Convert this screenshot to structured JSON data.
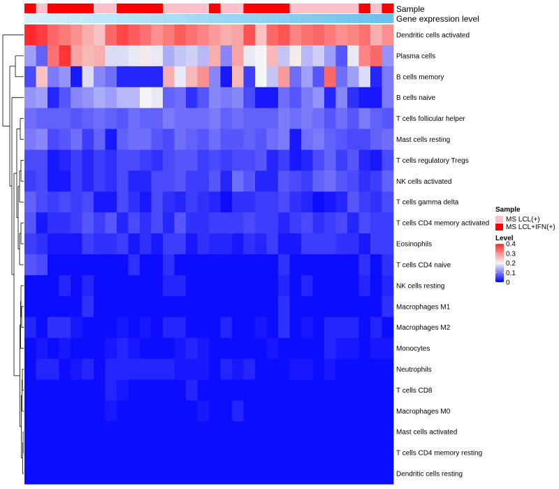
{
  "chart_data": {
    "type": "heatmap",
    "annotation_labels": {
      "sample": "Sample",
      "gene": "Gene expression level"
    },
    "legend": {
      "sample_title": "Sample",
      "sample_items": [
        {
          "label": "MS LCL(+)",
          "color": "#ffc0cb"
        },
        {
          "label": "MS LCL+IFN(+)",
          "color": "#ff0000"
        }
      ],
      "level_title": "Level",
      "level_ticks": [
        "0.4",
        "0.3",
        "0.2",
        "0.1",
        "0"
      ],
      "level_tick_values": [
        0.4,
        0.3,
        0.2,
        0.1,
        0
      ],
      "color_scale": [
        {
          "value": 0,
          "color": "#0000ff"
        },
        {
          "value": 0.2,
          "color": "#f5f5f5"
        },
        {
          "value": 0.4,
          "color": "#ff2a2a"
        }
      ],
      "placement": "right"
    },
    "sample_groups": [
      "red",
      "pink",
      "red",
      "red",
      "red",
      "red",
      "pink",
      "pink",
      "red",
      "red",
      "red",
      "red",
      "pink",
      "pink",
      "pink",
      "pink",
      "red",
      "pink",
      "pink",
      "red",
      "red",
      "red",
      "red",
      "pink",
      "pink",
      "pink",
      "pink",
      "pink",
      "pink",
      "red",
      "pink",
      "red"
    ],
    "gene_expression_colors": [
      "#d4f0fb",
      "#d1effb",
      "#cdedfa",
      "#caecfa",
      "#c6eafa",
      "#c3e9f9",
      "#bfe7f9",
      "#bce6f9",
      "#b8e4f8",
      "#b5e3f8",
      "#b1e1f8",
      "#aee0f7",
      "#aadef7",
      "#a7ddf7",
      "#a3dbf6",
      "#a0daf6",
      "#9cd8f6",
      "#99d7f5",
      "#95d5f5",
      "#92d4f5",
      "#8ed2f4",
      "#8bd1f4",
      "#87cff4",
      "#84cef3",
      "#80ccf3",
      "#7dcbf3",
      "#79c9f2",
      "#76c8f2",
      "#72c6f2",
      "#6fc5f1",
      "#6bc3f1",
      "#68c2f1"
    ],
    "rows": [
      {
        "name": "Dendritic cells activated",
        "values": [
          0.4,
          0.38,
          0.34,
          0.32,
          0.3,
          0.27,
          0.25,
          0.34,
          0.37,
          0.35,
          0.33,
          0.3,
          0.32,
          0.35,
          0.33,
          0.31,
          0.29,
          0.27,
          0.28,
          0.36,
          0.25,
          0.34,
          0.36,
          0.31,
          0.33,
          0.34,
          0.32,
          0.3,
          0.31,
          0.33,
          0.27,
          0.3
        ]
      },
      {
        "name": "Plasma cells",
        "values": [
          0.13,
          0.08,
          0.33,
          0.39,
          0.28,
          0.26,
          0.27,
          0.18,
          0.18,
          0.19,
          0.21,
          0.19,
          0.14,
          0.16,
          0.17,
          0.15,
          0.27,
          0.11,
          0.28,
          0.19,
          0.2,
          0.26,
          0.16,
          0.21,
          0.15,
          0.17,
          0.13,
          0.07,
          0.19,
          0.31,
          0.34,
          0.12
        ]
      },
      {
        "name": "B cells memory",
        "values": [
          0.06,
          0.25,
          0.1,
          0.12,
          0.02,
          0.18,
          0.11,
          0.09,
          0.03,
          0.03,
          0.03,
          0.03,
          0.27,
          0.19,
          0.26,
          0.3,
          0.11,
          0.02,
          0.26,
          0.05,
          0.2,
          0.16,
          0.29,
          0.09,
          0.13,
          0.07,
          0.34,
          0.09,
          0.13,
          0.18,
          0.03,
          0.1
        ]
      },
      {
        "name": "B cells naive",
        "values": [
          0.12,
          0.13,
          0.03,
          0.07,
          0.11,
          0.12,
          0.14,
          0.13,
          0.15,
          0.15,
          0.2,
          0.19,
          0.08,
          0.09,
          0.04,
          0.07,
          0.11,
          0.1,
          0.11,
          0.06,
          0.02,
          0.02,
          0.09,
          0.07,
          0.1,
          0.12,
          0.03,
          0.11,
          0.04,
          0.02,
          0.02,
          0.1
        ]
      },
      {
        "name": "T cells follicular helper",
        "values": [
          0.09,
          0.08,
          0.08,
          0.08,
          0.07,
          0.08,
          0.09,
          0.08,
          0.07,
          0.09,
          0.08,
          0.08,
          0.1,
          0.09,
          0.09,
          0.09,
          0.1,
          0.08,
          0.09,
          0.08,
          0.08,
          0.08,
          0.1,
          0.09,
          0.1,
          0.09,
          0.07,
          0.09,
          0.07,
          0.1,
          0.08,
          0.07
        ]
      },
      {
        "name": "Mast cells resting",
        "values": [
          0.1,
          0.11,
          0.06,
          0.07,
          0.09,
          0.05,
          0.08,
          0.02,
          0.08,
          0.09,
          0.09,
          0.07,
          0.06,
          0.09,
          0.08,
          0.07,
          0.09,
          0.07,
          0.07,
          0.08,
          0.07,
          0.09,
          0.1,
          0.02,
          0.09,
          0.1,
          0.08,
          0.07,
          0.06,
          0.06,
          0.08,
          0.09
        ]
      },
      {
        "name": "T cells regulatory  Tregs",
        "values": [
          0.06,
          0.06,
          0.02,
          0.03,
          0.05,
          0.03,
          0.05,
          0.04,
          0.06,
          0.06,
          0.05,
          0.04,
          0.06,
          0.07,
          0.07,
          0.05,
          0.06,
          0.05,
          0.06,
          0.06,
          0.07,
          0.03,
          0.05,
          0.02,
          0.03,
          0.06,
          0.08,
          0.05,
          0.07,
          0.03,
          0.02,
          0.06
        ]
      },
      {
        "name": "NK cells activated",
        "values": [
          0.05,
          0.06,
          0.02,
          0.02,
          0.05,
          0.03,
          0.05,
          0.04,
          0.06,
          0.03,
          0.03,
          0.06,
          0.06,
          0.07,
          0.05,
          0.05,
          0.07,
          0.03,
          0.09,
          0.07,
          0.03,
          0.03,
          0.07,
          0.06,
          0.05,
          0.08,
          0.09,
          0.07,
          0.06,
          0.04,
          0.05,
          0.08
        ]
      },
      {
        "name": "T cells gamma delta",
        "values": [
          0.08,
          0.06,
          0.05,
          0.06,
          0.05,
          0.06,
          0.02,
          0.02,
          0.06,
          0.04,
          0.02,
          0.06,
          0.04,
          0.03,
          0.05,
          0.04,
          0.03,
          0.01,
          0.04,
          0.04,
          0.05,
          0.05,
          0.06,
          0.04,
          0.03,
          0.01,
          0.02,
          0.03,
          0.07,
          0.05,
          0.04,
          0.06
        ]
      },
      {
        "name": "T cells CD4 memory activated",
        "values": [
          0.07,
          0.02,
          0.04,
          0.04,
          0.05,
          0.07,
          0.05,
          0.07,
          0.03,
          0.06,
          0.04,
          0.06,
          0.03,
          0.07,
          0.04,
          0.04,
          0.05,
          0.05,
          0.05,
          0.06,
          0.05,
          0.05,
          0.03,
          0.05,
          0.06,
          0.04,
          0.05,
          0.06,
          0.03,
          0.06,
          0.05,
          0.05
        ]
      },
      {
        "name": "Eosinophils",
        "values": [
          0.05,
          0.04,
          0.02,
          0.02,
          0.02,
          0.05,
          0.04,
          0.04,
          0.05,
          0.02,
          0.04,
          0.02,
          0.05,
          0.05,
          0.02,
          0.04,
          0.03,
          0.03,
          0.02,
          0.04,
          0.03,
          0.05,
          0.02,
          0.02,
          0.05,
          0.05,
          0.05,
          0.04,
          0.04,
          0.02,
          0.05,
          0.05
        ]
      },
      {
        "name": "T cells CD4 naive",
        "values": [
          0.07,
          0.06,
          0.01,
          0.01,
          0.01,
          0.01,
          0.01,
          0.01,
          0.01,
          0.04,
          0.01,
          0.01,
          0.04,
          0.01,
          0.01,
          0.01,
          0.01,
          0.01,
          0.01,
          0.01,
          0.01,
          0.01,
          0.04,
          0.01,
          0.01,
          0.01,
          0.01,
          0.01,
          0.01,
          0.04,
          0.01,
          0.04
        ]
      },
      {
        "name": "NK cells resting",
        "values": [
          0.01,
          0.01,
          0.01,
          0.03,
          0.01,
          0.03,
          0.01,
          0.01,
          0.01,
          0.01,
          0.01,
          0.01,
          0.03,
          0.03,
          0.01,
          0.01,
          0.01,
          0.01,
          0.01,
          0.01,
          0.01,
          0.01,
          0.03,
          0.01,
          0.03,
          0.01,
          0.01,
          0.01,
          0.01,
          0.03,
          0.01,
          0.03
        ]
      },
      {
        "name": "Macrophages M1",
        "values": [
          0.01,
          0.01,
          0.01,
          0.01,
          0.01,
          0.04,
          0.01,
          0.01,
          0.01,
          0.01,
          0.01,
          0.01,
          0.01,
          0.01,
          0.01,
          0.01,
          0.01,
          0.01,
          0.01,
          0.01,
          0.01,
          0.01,
          0.04,
          0.01,
          0.01,
          0.01,
          0.01,
          0.01,
          0.01,
          0.01,
          0.01,
          0.04
        ]
      },
      {
        "name": "Macrophages M2",
        "values": [
          0.03,
          0.01,
          0.04,
          0.04,
          0.02,
          0.01,
          0.01,
          0.01,
          0.02,
          0.01,
          0.02,
          0.01,
          0.03,
          0.03,
          0.01,
          0.01,
          0.01,
          0.03,
          0.01,
          0.01,
          0.02,
          0.01,
          0.04,
          0.01,
          0.02,
          0.01,
          0.03,
          0.03,
          0.03,
          0.01,
          0.03,
          0.01
        ]
      },
      {
        "name": "Monocytes",
        "values": [
          0.01,
          0.02,
          0.01,
          0.02,
          0.01,
          0.01,
          0.01,
          0.02,
          0.03,
          0.02,
          0.01,
          0.01,
          0.01,
          0.02,
          0.03,
          0.02,
          0.01,
          0.01,
          0.01,
          0.01,
          0.01,
          0.02,
          0.01,
          0.01,
          0.01,
          0.01,
          0.03,
          0.02,
          0.02,
          0.01,
          0.02,
          0.02
        ]
      },
      {
        "name": "Neutrophils",
        "values": [
          0.01,
          0.03,
          0.03,
          0.01,
          0.02,
          0.03,
          0.01,
          0.03,
          0.03,
          0.03,
          0.03,
          0.03,
          0.03,
          0.02,
          0.02,
          0.02,
          0.01,
          0.03,
          0.02,
          0.03,
          0.01,
          0.01,
          0.01,
          0.02,
          0.02,
          0.01,
          0.02,
          0.01,
          0.01,
          0.01,
          0.01,
          0.01
        ]
      },
      {
        "name": "T cells CD8",
        "values": [
          0.01,
          0.01,
          0.01,
          0.01,
          0.01,
          0.01,
          0.01,
          0.03,
          0.02,
          0.01,
          0.01,
          0.01,
          0.01,
          0.01,
          0.03,
          0.01,
          0.01,
          0.01,
          0.01,
          0.01,
          0.01,
          0.01,
          0.01,
          0.01,
          0.01,
          0.01,
          0.01,
          0.01,
          0.01,
          0.01,
          0.01,
          0.01
        ]
      },
      {
        "name": "Macrophages M0",
        "values": [
          0.01,
          0.01,
          0.01,
          0.01,
          0.01,
          0.01,
          0.01,
          0.02,
          0.01,
          0.01,
          0.01,
          0.01,
          0.01,
          0.01,
          0.01,
          0.02,
          0.01,
          0.01,
          0.03,
          0.01,
          0.01,
          0.01,
          0.01,
          0.01,
          0.01,
          0.01,
          0.01,
          0.01,
          0.01,
          0.01,
          0.01,
          0.01
        ]
      },
      {
        "name": "Mast cells activated",
        "values": [
          0.01,
          0.01,
          0.01,
          0.01,
          0.01,
          0.01,
          0.01,
          0.01,
          0.01,
          0.01,
          0.01,
          0.01,
          0.01,
          0.01,
          0.01,
          0.01,
          0.01,
          0.01,
          0.01,
          0.01,
          0.01,
          0.01,
          0.01,
          0.01,
          0.01,
          0.01,
          0.01,
          0.01,
          0.01,
          0.01,
          0.01,
          0.01
        ]
      },
      {
        "name": "T cells CD4 memory resting",
        "values": [
          0.01,
          0.01,
          0.01,
          0.01,
          0.01,
          0.01,
          0.01,
          0.01,
          0.01,
          0.01,
          0.01,
          0.01,
          0.01,
          0.01,
          0.01,
          0.01,
          0.01,
          0.01,
          0.01,
          0.01,
          0.01,
          0.01,
          0.01,
          0.01,
          0.01,
          0.01,
          0.01,
          0.01,
          0.01,
          0.01,
          0.01,
          0.01
        ]
      },
      {
        "name": "Dendritic cells resting",
        "values": [
          0.01,
          0.01,
          0.01,
          0.01,
          0.01,
          0.01,
          0.01,
          0.01,
          0.01,
          0.01,
          0.01,
          0.01,
          0.01,
          0.01,
          0.01,
          0.01,
          0.01,
          0.01,
          0.01,
          0.01,
          0.01,
          0.01,
          0.01,
          0.01,
          0.01,
          0.01,
          0.01,
          0.01,
          0.01,
          0.01,
          0.01,
          0.01
        ]
      }
    ]
  }
}
